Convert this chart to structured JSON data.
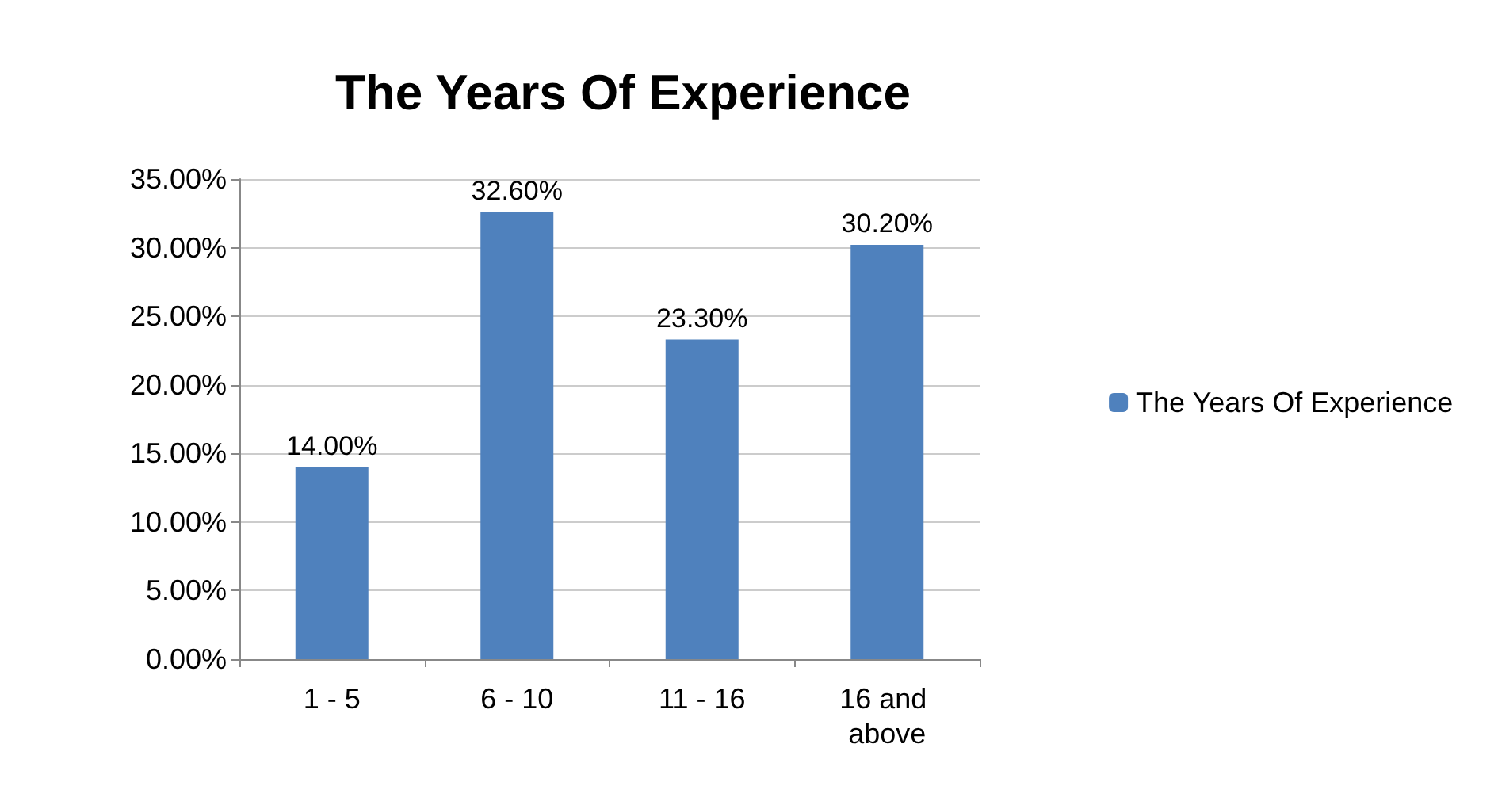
{
  "chart_data": {
    "type": "bar",
    "title": "The Years Of Experience",
    "categories": [
      "1 - 5",
      "6 - 10",
      "11 - 16",
      "16 and above"
    ],
    "series": [
      {
        "name": "The Years Of Experience",
        "color": "#4f81bd",
        "values": [
          14.0,
          32.6,
          23.3,
          30.2
        ],
        "value_labels": [
          "14.00%",
          "32.60%",
          "23.30%",
          "30.20%"
        ]
      }
    ],
    "ylim": [
      0,
      35
    ],
    "yticks": [
      {
        "value": 0,
        "label": "0.00%"
      },
      {
        "value": 5,
        "label": "5.00%"
      },
      {
        "value": 10,
        "label": "10.00%"
      },
      {
        "value": 15,
        "label": "15.00%"
      },
      {
        "value": 20,
        "label": "20.00%"
      },
      {
        "value": 25,
        "label": "25.00%"
      },
      {
        "value": 30,
        "label": "30.00%"
      },
      {
        "value": 35,
        "label": "35.00%"
      }
    ],
    "grid": "y",
    "legend": "right"
  }
}
